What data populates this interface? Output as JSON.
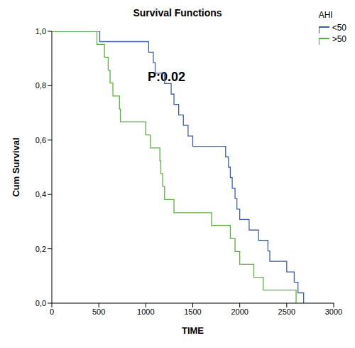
{
  "chart_data": {
    "type": "line",
    "title": "Survival Functions",
    "x_label": "TIME",
    "y_label": "Cum Survival",
    "legend_title": "AHI",
    "legend": "upper right",
    "annotation": "P:0.02",
    "line_style": "step",
    "grid": false,
    "xlim": [
      0,
      3000
    ],
    "xticks": [
      0,
      500,
      1000,
      1500,
      2000,
      2500,
      3000
    ],
    "ylim": [
      0,
      1
    ],
    "yticks": [
      {
        "value": 0,
        "label": "0,0"
      },
      {
        "value": 0.2,
        "label": "0,2"
      },
      {
        "value": 0.4,
        "label": "0,4"
      },
      {
        "value": 0.6,
        "label": "0,6"
      },
      {
        "value": 0.8,
        "label": "0,8"
      },
      {
        "value": 1,
        "label": "1,0"
      }
    ],
    "series": [
      {
        "name": "<50",
        "color": "#3f5fae",
        "x": [
          0,
          510,
          1030,
          1080,
          1100,
          1200,
          1270,
          1300,
          1350,
          1400,
          1450,
          1500,
          1850,
          1880,
          1900,
          1920,
          1950,
          1970,
          2000,
          2100,
          2200,
          2300,
          2320,
          2500,
          2580,
          2620,
          2680
        ],
        "values": [
          1,
          0.962,
          0.923,
          0.885,
          0.846,
          0.808,
          0.769,
          0.731,
          0.692,
          0.654,
          0.615,
          0.577,
          0.538,
          0.5,
          0.462,
          0.423,
          0.385,
          0.346,
          0.308,
          0.269,
          0.231,
          0.192,
          0.154,
          0.115,
          0.077,
          0.038,
          0
        ]
      },
      {
        "name": ">50",
        "color": "#5ab33c",
        "x": [
          0,
          480,
          560,
          600,
          620,
          650,
          720,
          730,
          1000,
          1050,
          1150,
          1160,
          1180,
          1200,
          1300,
          1700,
          1900,
          1950,
          2000,
          2150,
          2250,
          2600
        ],
        "values": [
          1,
          0.952,
          0.905,
          0.857,
          0.81,
          0.762,
          0.714,
          0.667,
          0.619,
          0.571,
          0.524,
          0.476,
          0.429,
          0.381,
          0.333,
          0.286,
          0.238,
          0.19,
          0.143,
          0.095,
          0.048,
          0
        ]
      }
    ]
  }
}
